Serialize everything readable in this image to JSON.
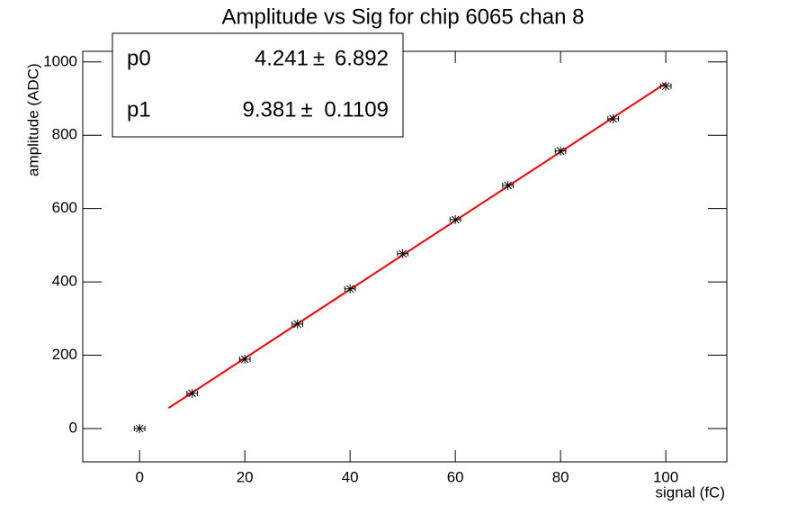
{
  "chart_data": {
    "type": "scatter",
    "title": "Amplitude vs Sig for chip 6065 chan 8",
    "x_label": "signal (fC)",
    "y_label": "amplitude (ADC)",
    "x": [
      0,
      10,
      20,
      30,
      40,
      50,
      60,
      70,
      80,
      90,
      100
    ],
    "series": [
      {
        "color": "#000000",
        "values": [
          0,
          96,
          189,
          285,
          381,
          477,
          570,
          663,
          757,
          845,
          934
        ],
        "xerr": [
          1,
          1,
          1,
          1,
          1,
          1,
          1,
          1,
          1,
          1,
          1
        ]
      }
    ],
    "fit": {
      "color": "#ff0000",
      "range": [
        5.5,
        100
      ],
      "params": [
        {
          "name": "p0",
          "value": 4.241,
          "error": 6.892
        },
        {
          "name": "p1",
          "value": 9.381,
          "error": 0.1109
        }
      ],
      "pm": "±"
    },
    "xlim": [
      -10.8,
      111.6
    ],
    "xticks": [
      0,
      20,
      40,
      60,
      80,
      100
    ],
    "ylim": [
      -91,
      1029
    ],
    "yticks": [
      0,
      200,
      400,
      600,
      800,
      1000
    ]
  }
}
